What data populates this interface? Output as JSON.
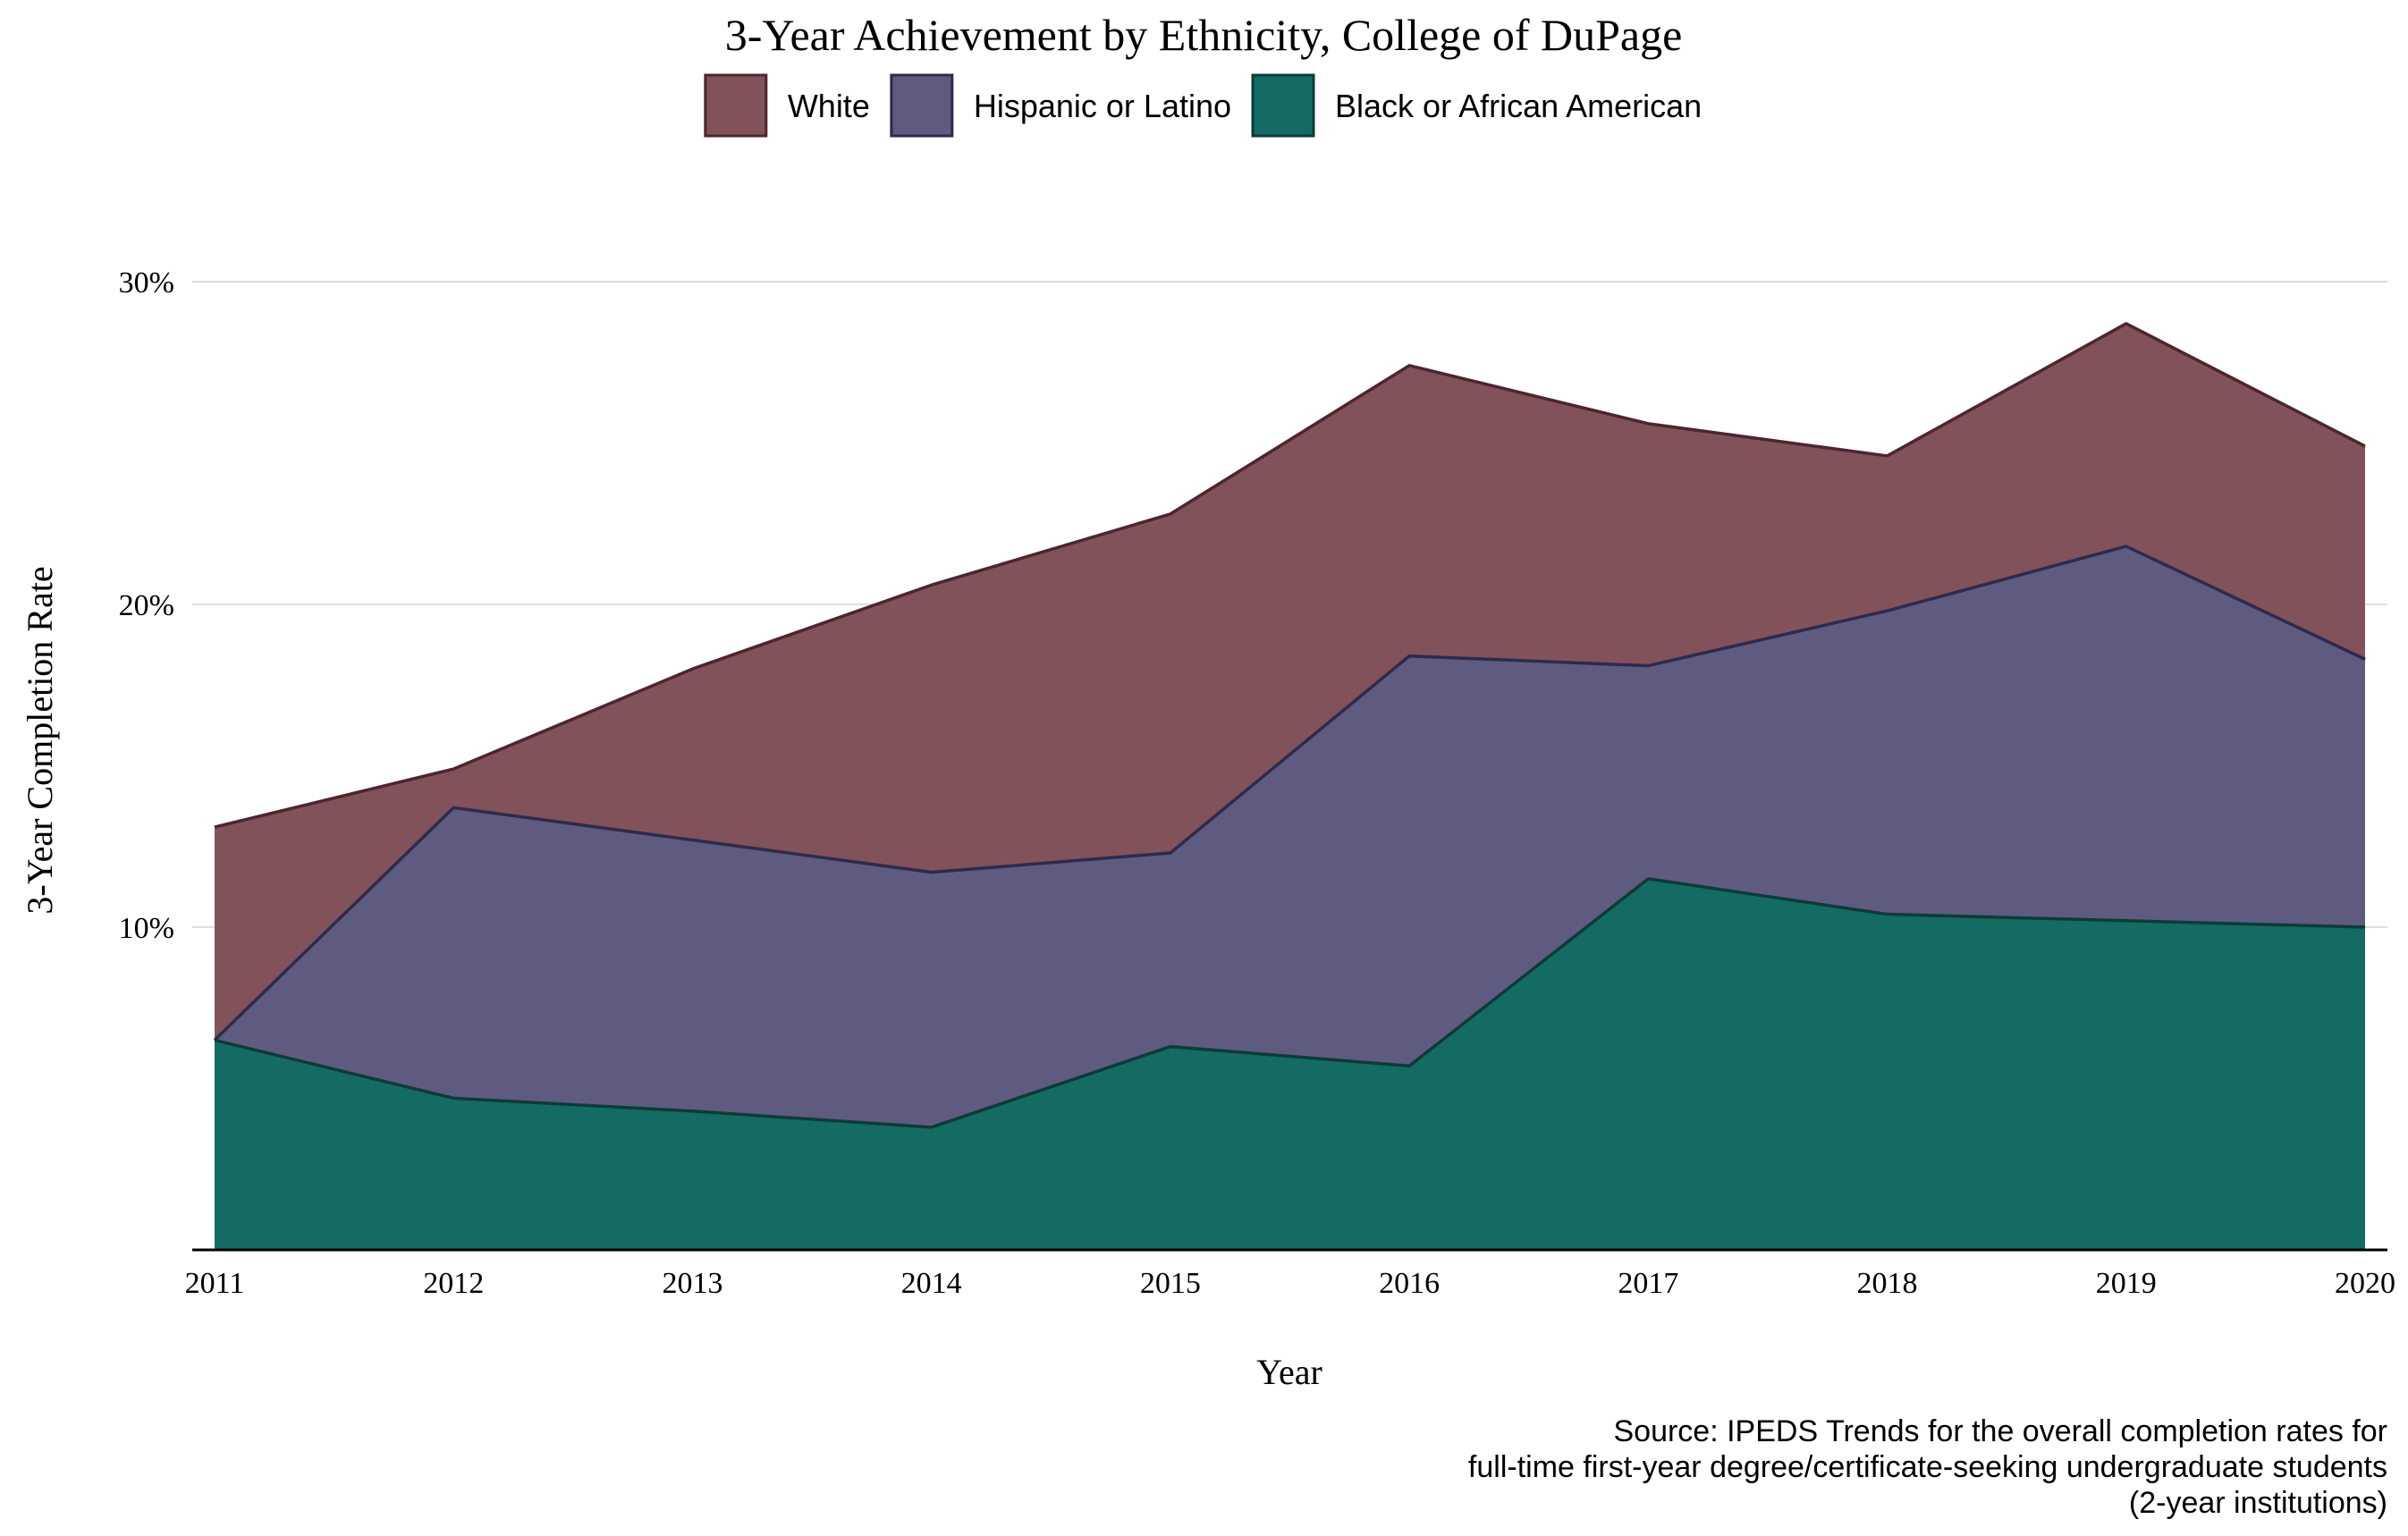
{
  "chart_data": {
    "type": "area",
    "title": "3-Year Achievement by Ethnicity, College of DuPage",
    "xlabel": "Year",
    "ylabel": "3-Year Completion Rate",
    "x": [
      2011,
      2012,
      2013,
      2014,
      2015,
      2016,
      2017,
      2018,
      2019,
      2020
    ],
    "ylim": [
      0,
      30
    ],
    "yticks": [
      10,
      20,
      30
    ],
    "ytick_labels": [
      "10%",
      "20%",
      "30%"
    ],
    "grid": "horizontal",
    "legend_position": "top",
    "series": [
      {
        "name": "White",
        "color": "#815259",
        "stroke": "#4d2530",
        "values": [
          13.1,
          14.9,
          18.0,
          20.6,
          22.8,
          27.4,
          25.6,
          24.6,
          28.7,
          24.9
        ]
      },
      {
        "name": "Hispanic or Latino",
        "color": "#5f5b80",
        "stroke": "#2e2a4e",
        "values": [
          6.5,
          13.7,
          12.7,
          11.7,
          12.3,
          18.4,
          18.1,
          19.8,
          21.8,
          18.3
        ]
      },
      {
        "name": "Black or African American",
        "color": "#146b63",
        "stroke": "#0d3b37",
        "values": [
          6.5,
          4.7,
          4.3,
          3.8,
          6.3,
          5.7,
          11.5,
          10.4,
          10.2,
          10.0
        ]
      }
    ],
    "source": [
      "Source: IPEDS Trends for the overall completion rates for",
      "full-time first-year degree/certificate-seeking undergraduate students",
      "(2-year institutions)"
    ]
  }
}
